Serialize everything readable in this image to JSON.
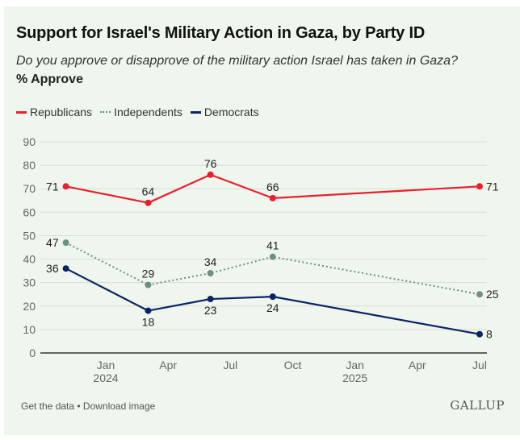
{
  "header": {
    "title": "Support for Israel's Military Action in Gaza, by Party ID",
    "subtitle": "Do you approve or disapprove of the military action Israel has taken in Gaza?",
    "unit": "% Approve"
  },
  "legend": [
    {
      "name": "Republicans",
      "color": "#e8202e",
      "style": "solid"
    },
    {
      "name": "Independents",
      "color": "#6f8f84",
      "style": "dotted"
    },
    {
      "name": "Democrats",
      "color": "#0b2265",
      "style": "solid"
    }
  ],
  "footer": {
    "links_text": "Get the data • Download image",
    "brand": "GALLUP"
  },
  "chart_data": {
    "type": "line",
    "title": "Support for Israel's Military Action in Gaza, by Party ID",
    "subtitle": "Do you approve or disapprove of the military action Israel has taken in Gaza?",
    "ylabel": "% Approve",
    "xlabel": "",
    "ylim": [
      0,
      90
    ],
    "yticks": [
      0,
      10,
      20,
      30,
      40,
      50,
      60,
      70,
      80,
      90
    ],
    "x_range_months": [
      2023.75,
      2025.5
    ],
    "xticks": [
      {
        "month": 2024.0,
        "label": "Jan",
        "sublabel": "2024"
      },
      {
        "month": 2024.25,
        "label": "Apr",
        "sublabel": ""
      },
      {
        "month": 2024.5,
        "label": "Jul",
        "sublabel": ""
      },
      {
        "month": 2024.75,
        "label": "Oct",
        "sublabel": ""
      },
      {
        "month": 2025.0,
        "label": "Jan",
        "sublabel": "2025"
      },
      {
        "month": 2025.25,
        "label": "Apr",
        "sublabel": ""
      },
      {
        "month": 2025.5,
        "label": "Jul",
        "sublabel": ""
      }
    ],
    "x": [
      "Nov 2023",
      "Mar 2024",
      "Jun 2024",
      "Sep 2024",
      "Jul 2025"
    ],
    "x_numeric": [
      2023.84,
      2024.17,
      2024.42,
      2024.67,
      2025.5
    ],
    "series": [
      {
        "name": "Republicans",
        "color": "#e8202e",
        "style": "solid",
        "values": [
          71,
          64,
          76,
          66,
          71
        ],
        "label_pos": [
          "left",
          "above",
          "above",
          "above",
          "right"
        ]
      },
      {
        "name": "Independents",
        "color": "#6f8f84",
        "style": "dotted",
        "values": [
          47,
          29,
          34,
          41,
          25
        ],
        "label_pos": [
          "left",
          "above",
          "above",
          "above",
          "right"
        ]
      },
      {
        "name": "Democrats",
        "color": "#0b2265",
        "style": "solid",
        "values": [
          36,
          18,
          23,
          24,
          8
        ],
        "label_pos": [
          "left",
          "below",
          "below",
          "below",
          "right"
        ]
      }
    ],
    "grid": true,
    "legend_position": "top-left"
  }
}
